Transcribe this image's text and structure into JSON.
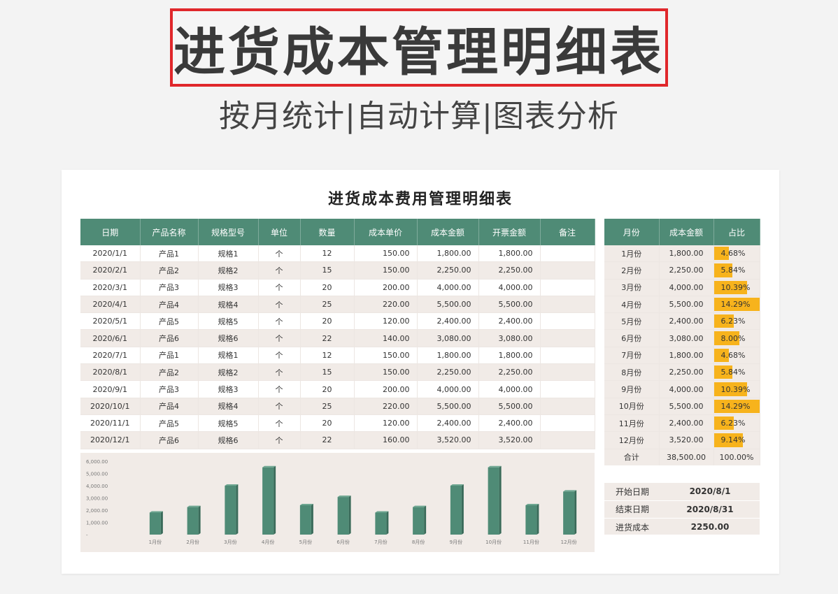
{
  "hero": {
    "title": "进货成本管理明细表",
    "subtitle": "按月统计|自动计算|图表分析"
  },
  "sheet": {
    "title": "进货成本费用管理明细表",
    "headers": [
      "日期",
      "产品名称",
      "规格型号",
      "单位",
      "数量",
      "成本单价",
      "成本金额",
      "开票金额",
      "备注"
    ],
    "rows": [
      [
        "2020/1/1",
        "产品1",
        "规格1",
        "个",
        "12",
        "150.00",
        "1,800.00",
        "1,800.00",
        ""
      ],
      [
        "2020/2/1",
        "产品2",
        "规格2",
        "个",
        "15",
        "150.00",
        "2,250.00",
        "2,250.00",
        ""
      ],
      [
        "2020/3/1",
        "产品3",
        "规格3",
        "个",
        "20",
        "200.00",
        "4,000.00",
        "4,000.00",
        ""
      ],
      [
        "2020/4/1",
        "产品4",
        "规格4",
        "个",
        "25",
        "220.00",
        "5,500.00",
        "5,500.00",
        ""
      ],
      [
        "2020/5/1",
        "产品5",
        "规格5",
        "个",
        "20",
        "120.00",
        "2,400.00",
        "2,400.00",
        ""
      ],
      [
        "2020/6/1",
        "产品6",
        "规格6",
        "个",
        "22",
        "140.00",
        "3,080.00",
        "3,080.00",
        ""
      ],
      [
        "2020/7/1",
        "产品1",
        "规格1",
        "个",
        "12",
        "150.00",
        "1,800.00",
        "1,800.00",
        ""
      ],
      [
        "2020/8/1",
        "产品2",
        "规格2",
        "个",
        "15",
        "150.00",
        "2,250.00",
        "2,250.00",
        ""
      ],
      [
        "2020/9/1",
        "产品3",
        "规格3",
        "个",
        "20",
        "200.00",
        "4,000.00",
        "4,000.00",
        ""
      ],
      [
        "2020/10/1",
        "产品4",
        "规格4",
        "个",
        "25",
        "220.00",
        "5,500.00",
        "5,500.00",
        ""
      ],
      [
        "2020/11/1",
        "产品5",
        "规格5",
        "个",
        "20",
        "120.00",
        "2,400.00",
        "2,400.00",
        ""
      ],
      [
        "2020/12/1",
        "产品6",
        "规格6",
        "个",
        "22",
        "160.00",
        "3,520.00",
        "3,520.00",
        ""
      ]
    ]
  },
  "summary": {
    "headers": [
      "月份",
      "成本金额",
      "占比"
    ],
    "rows": [
      {
        "month": "1月份",
        "amount": "1,800.00",
        "pct": "4.68%",
        "pct_value": 4.68
      },
      {
        "month": "2月份",
        "amount": "2,250.00",
        "pct": "5.84%",
        "pct_value": 5.84
      },
      {
        "month": "3月份",
        "amount": "4,000.00",
        "pct": "10.39%",
        "pct_value": 10.39
      },
      {
        "month": "4月份",
        "amount": "5,500.00",
        "pct": "14.29%",
        "pct_value": 14.29
      },
      {
        "month": "5月份",
        "amount": "2,400.00",
        "pct": "6.23%",
        "pct_value": 6.23
      },
      {
        "month": "6月份",
        "amount": "3,080.00",
        "pct": "8.00%",
        "pct_value": 8.0
      },
      {
        "month": "7月份",
        "amount": "1,800.00",
        "pct": "4.68%",
        "pct_value": 4.68
      },
      {
        "month": "8月份",
        "amount": "2,250.00",
        "pct": "5.84%",
        "pct_value": 5.84
      },
      {
        "month": "9月份",
        "amount": "4,000.00",
        "pct": "10.39%",
        "pct_value": 10.39
      },
      {
        "month": "10月份",
        "amount": "5,500.00",
        "pct": "14.29%",
        "pct_value": 14.29
      },
      {
        "month": "11月份",
        "amount": "2,400.00",
        "pct": "6.23%",
        "pct_value": 6.23
      },
      {
        "month": "12月份",
        "amount": "3,520.00",
        "pct": "9.14%",
        "pct_value": 9.14
      }
    ],
    "total": {
      "label": "合计",
      "amount": "38,500.00",
      "pct": "100.00%"
    },
    "pct_bar_color": "#f7b31c"
  },
  "info": {
    "start_label": "开始日期",
    "start_value": "2020/8/1",
    "end_label": "结束日期",
    "end_value": "2020/8/31",
    "cost_label": "进货成本",
    "cost_value": "2250.00"
  },
  "colors": {
    "header_green": "#4f8b76",
    "bar_green": "#4f8b76",
    "stripe": "#f1ebe7",
    "hero_border": "#e0272b"
  },
  "chart_data": {
    "type": "bar",
    "categories": [
      "1月份",
      "2月份",
      "3月份",
      "4月份",
      "5月份",
      "6月份",
      "7月份",
      "8月份",
      "9月份",
      "10月份",
      "11月份",
      "12月份"
    ],
    "values": [
      1800,
      2250,
      4000,
      5500,
      2400,
      3080,
      1800,
      2250,
      4000,
      5500,
      2400,
      3520
    ],
    "ytick_labels": [
      "6,000.00",
      "5,000.00",
      "4,000.00",
      "3,000.00",
      "2,000.00",
      "1,000.00",
      "-"
    ],
    "ylim": [
      0,
      6000
    ],
    "title": "",
    "xlabel": "",
    "ylabel": "",
    "grid": false
  }
}
